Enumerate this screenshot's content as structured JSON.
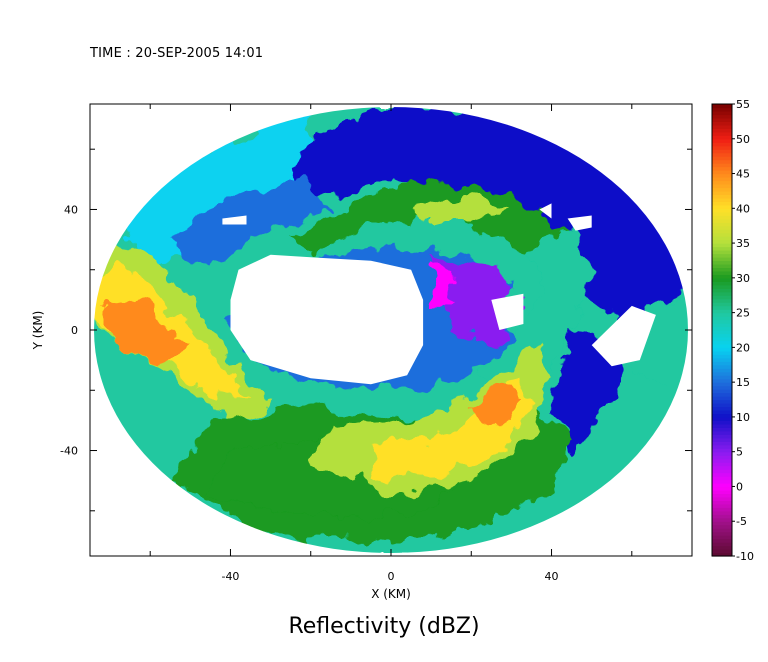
{
  "header": {
    "time_label": "TIME : 20-SEP-2005 14:01"
  },
  "chart_data": {
    "type": "heatmap",
    "title": "Reflectivity (dBZ)",
    "xlabel": "X (KM)",
    "ylabel": "Y (KM)",
    "xlim": [
      -75,
      75
    ],
    "ylim": [
      -75,
      75
    ],
    "x_ticks": [
      -40,
      0,
      40
    ],
    "y_ticks": [
      40,
      0,
      -40
    ],
    "minor_ticks": [
      -60,
      -20,
      20,
      60
    ],
    "grid": false,
    "colorbar": {
      "range": [
        -10,
        55
      ],
      "ticks": [
        55,
        50,
        45,
        40,
        35,
        30,
        25,
        20,
        15,
        10,
        5,
        0,
        -5,
        -10
      ],
      "stops": [
        {
          "value": -10,
          "color": "#5a0a2e"
        },
        {
          "value": -5,
          "color": "#a0108a"
        },
        {
          "value": 0,
          "color": "#ff00ff"
        },
        {
          "value": 5,
          "color": "#8a1cf0"
        },
        {
          "value": 10,
          "color": "#1010c8"
        },
        {
          "value": 15,
          "color": "#1e6edc"
        },
        {
          "value": 20,
          "color": "#08d2f0"
        },
        {
          "value": 25,
          "color": "#20c8a0"
        },
        {
          "value": 30,
          "color": "#1a9a20"
        },
        {
          "value": 35,
          "color": "#b4e03c"
        },
        {
          "value": 40,
          "color": "#ffe028"
        },
        {
          "value": 45,
          "color": "#ff8a1c"
        },
        {
          "value": 50,
          "color": "#f01e14"
        },
        {
          "value": 55,
          "color": "#780000"
        }
      ]
    },
    "features": {
      "scan_circle_radius_km": 74,
      "no_data_color": "#ffffff",
      "reflectivity_bands": [
        {
          "description": "outer arc south-west",
          "value": 45
        },
        {
          "description": "inner arc south-east",
          "value": 45
        },
        {
          "description": "north eyewall band",
          "value": 32
        },
        {
          "description": "eye region interior",
          "value": 10
        }
      ]
    }
  }
}
